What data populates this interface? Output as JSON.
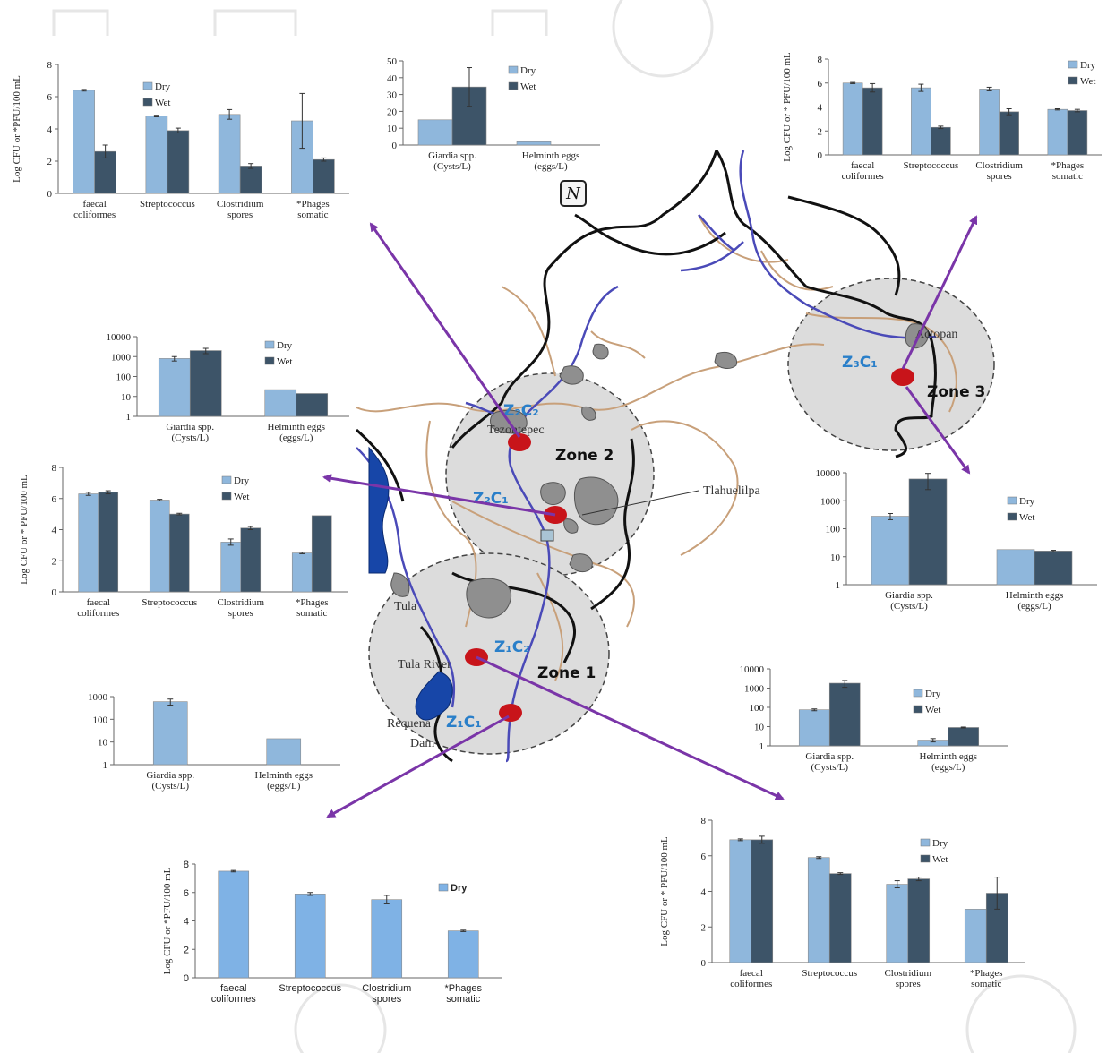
{
  "colors": {
    "dry": "#8fb7dc",
    "wet": "#3d5468",
    "dry_bright": "#7fb2e5",
    "arrow": "#7a35a8",
    "site": "#c8141a",
    "zone_fill": "#dcdcdc",
    "river": "#4a4ab8",
    "road": "#c8a07a",
    "lake": "#1746a8"
  },
  "map": {
    "zones": [
      "Zone 1",
      "Zone 2",
      "Zone 3"
    ],
    "sites": [
      "Z₁C₁",
      "Z₁C₂",
      "Z₂C₁",
      "Z₂C₂",
      "Z₃C₁"
    ],
    "places": [
      "Tlahuelilpa",
      "Actopan",
      "Tezontepec",
      "Tula River",
      "Tula",
      "Requena",
      "Dam"
    ],
    "north_symbol": "N"
  },
  "chart_data": [
    {
      "id": "z2c2_bacteria",
      "type": "bar",
      "ylabel": "Log CFU or  *PFU/100 mL",
      "ylim": [
        0,
        8
      ],
      "yticks": [
        0,
        2,
        4,
        6,
        8
      ],
      "categories": [
        [
          "faecal",
          "coliformes"
        ],
        [
          "Streptococcus"
        ],
        [
          "Clostridium",
          "spores"
        ],
        [
          "*Phages",
          "somatic"
        ]
      ],
      "series": [
        {
          "name": "Dry",
          "values": [
            6.4,
            4.8,
            4.9,
            4.5
          ],
          "err": [
            0.05,
            0.05,
            0.3,
            1.7
          ]
        },
        {
          "name": "Wet",
          "values": [
            2.6,
            3.9,
            1.7,
            2.1
          ],
          "err": [
            0.4,
            0.15,
            0.15,
            0.1
          ]
        }
      ]
    },
    {
      "id": "z2c2_parasites",
      "type": "bar",
      "ylabel": "",
      "ylim": [
        0,
        50
      ],
      "yticks": [
        0,
        10,
        20,
        30,
        40,
        50
      ],
      "categories": [
        [
          "Giardia spp.",
          "(Cysts/L)"
        ],
        [
          "Helminth eggs",
          "(eggs/L)"
        ]
      ],
      "series": [
        {
          "name": "Dry",
          "values": [
            15,
            2
          ],
          "err": [
            0,
            0
          ]
        },
        {
          "name": "Wet",
          "values": [
            34.5,
            0
          ],
          "err": [
            11.5,
            0
          ]
        }
      ]
    },
    {
      "id": "z3c1_bacteria",
      "type": "bar",
      "ylabel": "Log CFU or * PFU/100 mL",
      "ylim": [
        0,
        8
      ],
      "yticks": [
        0,
        2,
        4,
        6,
        8
      ],
      "categories": [
        [
          "faecal",
          "coliformes"
        ],
        [
          "Streptococcus"
        ],
        [
          "Clostridium",
          "spores"
        ],
        [
          "*Phages",
          "somatic"
        ]
      ],
      "series": [
        {
          "name": "Dry",
          "values": [
            6.0,
            5.6,
            5.5,
            3.8
          ],
          "err": [
            0.05,
            0.3,
            0.15,
            0.05
          ]
        },
        {
          "name": "Wet",
          "values": [
            5.6,
            2.3,
            3.6,
            3.7
          ],
          "err": [
            0.35,
            0.1,
            0.25,
            0.1
          ]
        }
      ]
    },
    {
      "id": "z2c1_parasites",
      "type": "bar",
      "scale": "log",
      "ylabel": "",
      "ylim": [
        1,
        10000
      ],
      "yticks": [
        1,
        10,
        100,
        1000,
        10000
      ],
      "categories": [
        [
          "Giardia spp.",
          "(Cysts/L)"
        ],
        [
          "Helminth eggs",
          "(eggs/L)"
        ]
      ],
      "series": [
        {
          "name": "Dry",
          "values": [
            800,
            22
          ],
          "err": [
            200,
            0
          ]
        },
        {
          "name": "Wet",
          "values": [
            2000,
            14
          ],
          "err": [
            600,
            0
          ]
        }
      ]
    },
    {
      "id": "z2c1_bacteria",
      "type": "bar",
      "ylabel": "Log CFU or * PFU/100 mL",
      "ylim": [
        0,
        8
      ],
      "yticks": [
        0,
        2,
        4,
        6,
        8
      ],
      "categories": [
        [
          "faecal",
          "coliformes"
        ],
        [
          "Streptococcus"
        ],
        [
          "Clostridium",
          "spores"
        ],
        [
          "*Phages",
          "somatic"
        ]
      ],
      "series": [
        {
          "name": "Dry",
          "values": [
            6.3,
            5.9,
            3.2,
            2.5
          ],
          "err": [
            0.1,
            0.05,
            0.2,
            0.05
          ]
        },
        {
          "name": "Wet",
          "values": [
            6.4,
            5.0,
            4.1,
            4.9
          ],
          "err": [
            0.1,
            0.05,
            0.1,
            0
          ]
        }
      ]
    },
    {
      "id": "z3c1_parasites",
      "type": "bar",
      "scale": "log",
      "ylabel": "",
      "ylim": [
        1,
        10000
      ],
      "yticks": [
        1,
        10,
        100,
        1000,
        10000
      ],
      "categories": [
        [
          "Giardia spp.",
          "(Cysts/L)"
        ],
        [
          "Helminth eggs",
          "(eggs/L)"
        ]
      ],
      "series": [
        {
          "name": "Dry",
          "values": [
            280,
            18
          ],
          "err": [
            70,
            0
          ]
        },
        {
          "name": "Wet",
          "values": [
            6000,
            16
          ],
          "err": [
            3500,
            1
          ]
        }
      ]
    },
    {
      "id": "z1c1_parasites",
      "type": "bar",
      "scale": "log",
      "ylabel": "",
      "ylim": [
        1,
        1000
      ],
      "yticks": [
        1,
        10,
        100,
        1000
      ],
      "categories": [
        [
          "Giardia spp.",
          "(Cysts/L)"
        ],
        [
          "Helminth eggs",
          "(eggs/L)"
        ]
      ],
      "series": [
        {
          "name": "",
          "values": [
            600,
            14
          ],
          "err": [
            180,
            0
          ]
        }
      ]
    },
    {
      "id": "z1c2_parasites",
      "type": "bar",
      "scale": "log",
      "ylabel": "",
      "ylim": [
        1,
        10000
      ],
      "yticks": [
        1,
        10,
        100,
        1000,
        10000
      ],
      "categories": [
        [
          "Giardia spp.",
          "(Cysts/L)"
        ],
        [
          "Helminth eggs",
          "(eggs/L)"
        ]
      ],
      "series": [
        {
          "name": "Dry",
          "values": [
            75,
            2
          ],
          "err": [
            8,
            0.4
          ]
        },
        {
          "name": "Wet",
          "values": [
            1800,
            9
          ],
          "err": [
            700,
            0.5
          ]
        }
      ]
    },
    {
      "id": "z1c1_bacteria",
      "type": "bar",
      "ylabel": "Log CFU or *PFU/100 mL",
      "ylim": [
        0,
        8
      ],
      "yticks": [
        0,
        2,
        4,
        6,
        8
      ],
      "categories": [
        [
          "faecal",
          "coliformes"
        ],
        [
          "Streptococcus"
        ],
        [
          "Clostridium",
          "spores"
        ],
        [
          "*Phages",
          "somatic"
        ]
      ],
      "series": [
        {
          "name": "Dry",
          "values": [
            7.5,
            5.9,
            5.5,
            3.3
          ],
          "err": [
            0.05,
            0.1,
            0.3,
            0.05
          ]
        }
      ]
    },
    {
      "id": "z1c2_bacteria",
      "type": "bar",
      "ylabel": "Log CFU or * PFU/100 mL",
      "ylim": [
        0,
        8
      ],
      "yticks": [
        0,
        2,
        4,
        6,
        8
      ],
      "categories": [
        [
          "faecal",
          "coliformes"
        ],
        [
          "Streptococcus"
        ],
        [
          "Clostridium",
          "spores"
        ],
        [
          "*Phages",
          "somatic"
        ]
      ],
      "series": [
        {
          "name": "Dry",
          "values": [
            6.9,
            5.9,
            4.4,
            3.0
          ],
          "err": [
            0.05,
            0.05,
            0.2,
            0
          ]
        },
        {
          "name": "Wet",
          "values": [
            6.9,
            5.0,
            4.7,
            3.9
          ],
          "err": [
            0.2,
            0.05,
            0.1,
            0.9
          ]
        }
      ]
    }
  ]
}
